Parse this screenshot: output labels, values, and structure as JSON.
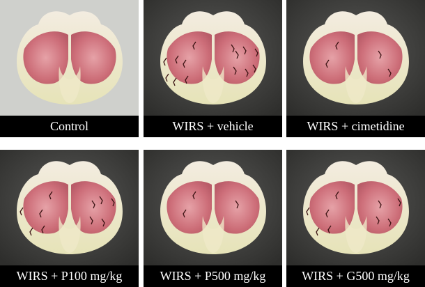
{
  "panels": [
    {
      "label": "Control"
    },
    {
      "label": "WIRS + vehicle"
    },
    {
      "label": "WIRS + cimetidine"
    },
    {
      "label": "WIRS + P100 mg/kg"
    },
    {
      "label": "WIRS + P500 mg/kg"
    },
    {
      "label": "WIRS + G500 mg/kg"
    }
  ]
}
